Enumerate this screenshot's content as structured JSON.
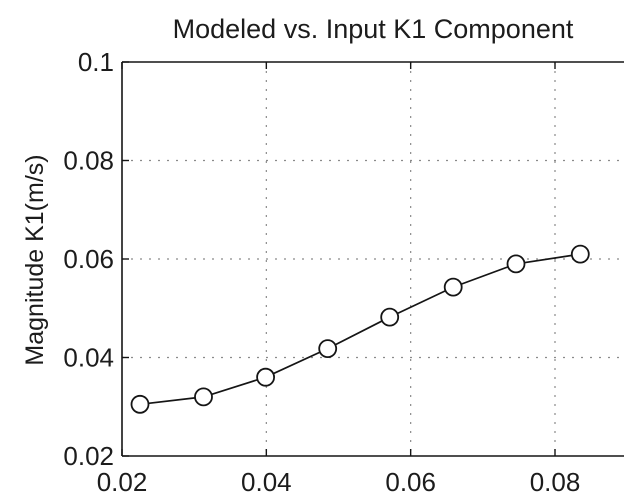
{
  "chart_data": {
    "type": "line",
    "title": "Modeled vs. Input K1 Component",
    "xlabel": "",
    "ylabel": "Magnitude K1(m/s)",
    "xlim": [
      0.02,
      0.09
    ],
    "ylim": [
      0.02,
      0.1
    ],
    "grid": true,
    "x_ticks": [
      "0.02",
      "0.04",
      "0.06",
      "0.08"
    ],
    "y_ticks": [
      "0.02",
      "0.04",
      "0.06",
      "0.08",
      "0.1"
    ],
    "series": [
      {
        "marker": "circle",
        "color": "#151515",
        "x": [
          0.0225,
          0.0313,
          0.0399,
          0.0485,
          0.0571,
          0.0659,
          0.0746,
          0.0835
        ],
        "y": [
          0.0305,
          0.032,
          0.036,
          0.0418,
          0.0482,
          0.0543,
          0.059,
          0.061
        ]
      }
    ]
  }
}
